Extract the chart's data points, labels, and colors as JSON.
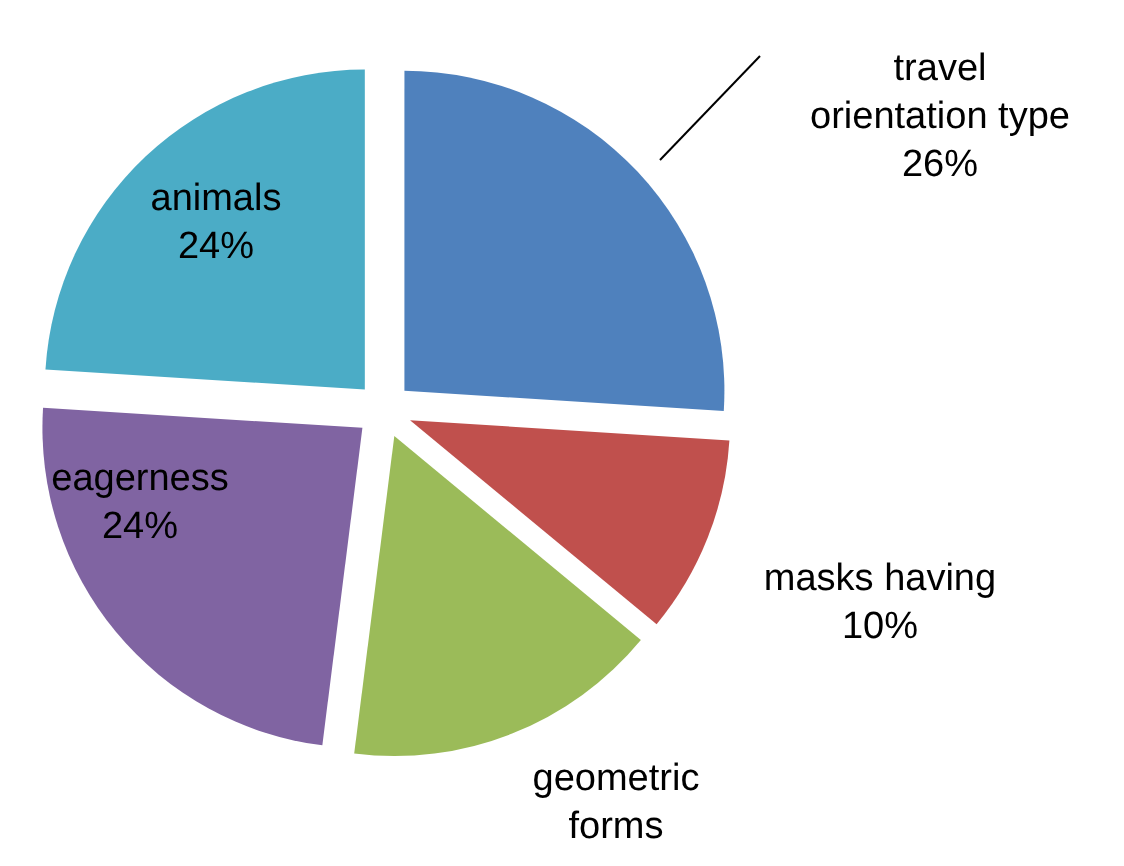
{
  "chart_data": {
    "type": "pie",
    "categories": [
      "travel orientation type",
      "masks having",
      "geometric forms",
      "eagerness",
      "animals"
    ],
    "values": [
      26,
      10,
      16,
      24,
      24
    ],
    "value_labels": [
      "26%",
      "10%",
      null,
      "24%",
      "24%"
    ],
    "colors": [
      "#4f81bd",
      "#c0504d",
      "#9bbb59",
      "#8064a2",
      "#4bacc6"
    ],
    "legend": false
  }
}
